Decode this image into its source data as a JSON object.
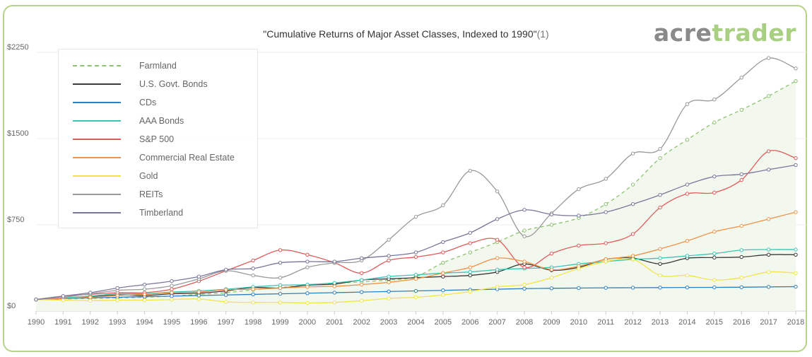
{
  "chart_data": {
    "type": "line",
    "title": "\"Cumulative Returns of Major Asset Classes, Indexed to 1990\"",
    "title_note": "(1)",
    "xlabel": "",
    "ylabel": "",
    "x": [
      "1990",
      "1991",
      "1992",
      "1993",
      "1994",
      "1995",
      "1996",
      "1997",
      "1998",
      "1999",
      "2000",
      "2001",
      "2002",
      "2003",
      "2004",
      "2005",
      "2006",
      "2007",
      "2008",
      "2009",
      "2010",
      "2011",
      "2012",
      "2013",
      "2014",
      "2015",
      "2016",
      "2017",
      "2018"
    ],
    "ylim": [
      0,
      2250
    ],
    "yticks": [
      0,
      750,
      1500,
      2250
    ],
    "ytick_labels": [
      "$0",
      "$750",
      "$1500",
      "$2250"
    ],
    "grid": true,
    "legend_position": "top-left",
    "series": [
      {
        "name": "Farmland",
        "color": "#8cc270",
        "dashed": true,
        "filled": true,
        "values": [
          100,
          105,
          110,
          115,
          120,
          130,
          145,
          160,
          185,
          205,
          225,
          240,
          255,
          270,
          300,
          420,
          510,
          600,
          700,
          750,
          810,
          930,
          1100,
          1330,
          1490,
          1640,
          1750,
          1870,
          2000
        ]
      },
      {
        "name": "U.S. Govt. Bonds",
        "color": "#3a3a3a",
        "dashed": false,
        "values": [
          100,
          110,
          125,
          140,
          135,
          150,
          155,
          175,
          205,
          200,
          225,
          235,
          270,
          280,
          290,
          300,
          310,
          340,
          410,
          355,
          380,
          450,
          460,
          410,
          460,
          465,
          470,
          490,
          490
        ]
      },
      {
        "name": "CDs",
        "color": "#2f7fbf",
        "dashed": false,
        "values": [
          100,
          108,
          115,
          120,
          125,
          130,
          135,
          140,
          145,
          150,
          155,
          160,
          165,
          170,
          175,
          180,
          185,
          190,
          195,
          198,
          200,
          202,
          203,
          204,
          205,
          206,
          207,
          210,
          212
        ]
      },
      {
        "name": "AAA Bonds",
        "color": "#3cc4b4",
        "dashed": false,
        "values": [
          100,
          115,
          130,
          150,
          150,
          165,
          175,
          190,
          210,
          225,
          230,
          245,
          270,
          300,
          315,
          330,
          340,
          360,
          370,
          380,
          410,
          430,
          450,
          460,
          480,
          500,
          530,
          535,
          535
        ]
      },
      {
        "name": "S&P 500",
        "color": "#e05a5a",
        "dashed": false,
        "values": [
          100,
          130,
          145,
          160,
          160,
          190,
          260,
          350,
          440,
          530,
          490,
          420,
          330,
          440,
          470,
          510,
          590,
          620,
          380,
          500,
          570,
          590,
          670,
          900,
          1020,
          1030,
          1140,
          1390,
          1330
        ]
      },
      {
        "name": "Commercial Real Estate",
        "color": "#f0924a",
        "dashed": false,
        "values": [
          100,
          110,
          120,
          135,
          145,
          160,
          165,
          185,
          190,
          200,
          210,
          215,
          230,
          250,
          280,
          330,
          380,
          460,
          430,
          360,
          390,
          450,
          480,
          540,
          610,
          690,
          740,
          800,
          860
        ]
      },
      {
        "name": "Gold",
        "color": "#f2e34a",
        "dashed": false,
        "values": [
          100,
          95,
          90,
          95,
          95,
          100,
          105,
          80,
          75,
          75,
          70,
          75,
          90,
          110,
          120,
          140,
          170,
          210,
          230,
          290,
          370,
          430,
          450,
          310,
          310,
          270,
          290,
          340,
          330
        ]
      },
      {
        "name": "REITs",
        "color": "#999999",
        "dashed": false,
        "values": [
          100,
          120,
          150,
          180,
          190,
          220,
          280,
          350,
          310,
          290,
          380,
          420,
          440,
          620,
          820,
          920,
          1220,
          1040,
          650,
          850,
          1060,
          1150,
          1370,
          1410,
          1800,
          1840,
          2030,
          2200,
          2110
        ]
      },
      {
        "name": "Timberland",
        "color": "#77779a",
        "dashed": false,
        "values": [
          100,
          130,
          160,
          200,
          230,
          260,
          300,
          360,
          370,
          420,
          430,
          430,
          460,
          480,
          510,
          600,
          680,
          800,
          880,
          840,
          830,
          860,
          930,
          1010,
          1100,
          1170,
          1190,
          1230,
          1270
        ]
      }
    ]
  },
  "logo": {
    "part1": "acre",
    "part2": "trader"
  }
}
